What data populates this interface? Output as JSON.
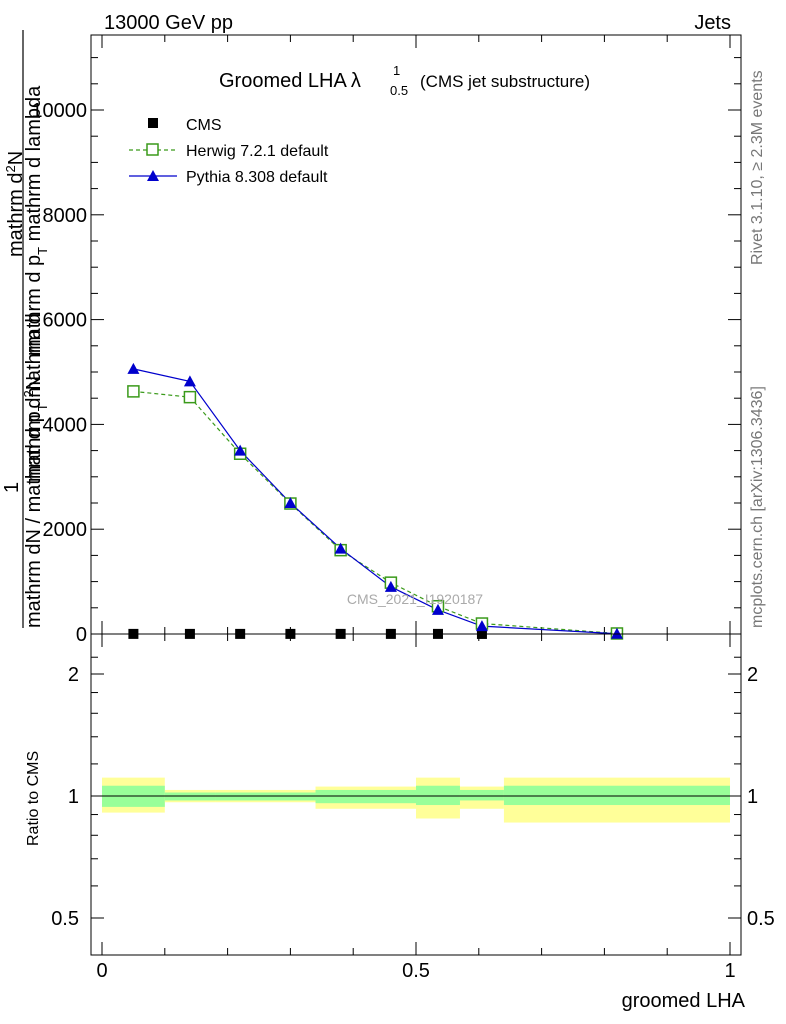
{
  "header": {
    "left": "13000 GeV pp",
    "right": "Jets"
  },
  "side_labels": {
    "rivet": "Rivet 3.1.10, ≥ 2.3M events",
    "mcplots": "mcplots.cern.ch [arXiv:1306.3436]"
  },
  "title": {
    "main": "Groomed LHA",
    "lambda": "λ",
    "sup": "1",
    "sub": "0.5",
    "note": "(CMS jet substructure)"
  },
  "watermark": "CMS_2021_I1920187",
  "ylabel_main": {
    "one": "1",
    "left_num": "mathrm d",
    "left_num_sup": "2",
    "left_num_after": "N",
    "left_den": "mathrm dN / mathrm d p",
    "left_den_sub": "T",
    "left_den_after": " mathrm d",
    "right_num": "mathrm d",
    "right_num_sup": "2",
    "right_num_after": "N",
    "right_den": "mathrm d p",
    "right_den_sub": "T",
    "right_den_after": " mathrm d lambda"
  },
  "ylabel_ratio": "Ratio to CMS",
  "xlabel": "groomed LHA",
  "colors": {
    "cms": "#000000",
    "herwig": "#3a9a1a",
    "pythia": "#0000cc",
    "band_inner": "#99ff99",
    "band_outer": "#ffff99"
  },
  "chart_data": [
    {
      "type": "line",
      "panel": "main",
      "xlim": [
        0,
        1
      ],
      "ylim": [
        0,
        11500
      ],
      "y_ticks": [
        {
          "value": 0,
          "label": "0"
        },
        {
          "value": 2000,
          "label": "2000"
        },
        {
          "value": 4000,
          "label": "4000"
        },
        {
          "value": 6000,
          "label": "6000"
        },
        {
          "value": 8000,
          "label": "8000"
        },
        {
          "value": 10000,
          "label": "10000"
        }
      ],
      "legend_position": "top-left",
      "series": [
        {
          "name": "CMS",
          "style": "black squares",
          "x": [
            0.05,
            0.14,
            0.22,
            0.3,
            0.38,
            0.46,
            0.535,
            0.605,
            0.82
          ],
          "y": [
            2,
            2,
            2,
            2,
            2,
            2,
            2,
            1,
            0
          ]
        },
        {
          "name": "Herwig 7.2.1 default",
          "style": "green dashed, open squares",
          "x": [
            0.05,
            0.14,
            0.22,
            0.3,
            0.38,
            0.46,
            0.535,
            0.605,
            0.82
          ],
          "y": [
            4630,
            4520,
            3440,
            2490,
            1600,
            980,
            530,
            200,
            10
          ]
        },
        {
          "name": "Pythia 8.308 default",
          "style": "blue solid, filled triangles",
          "x": [
            0.05,
            0.14,
            0.22,
            0.3,
            0.38,
            0.46,
            0.535,
            0.605,
            0.82
          ],
          "y": [
            5060,
            4820,
            3500,
            2500,
            1630,
            900,
            460,
            150,
            5
          ]
        }
      ]
    },
    {
      "type": "area",
      "panel": "ratio",
      "xlim": [
        0,
        1
      ],
      "ylim": [
        0.4,
        2.3
      ],
      "y_ticks": [
        {
          "value": 0.5,
          "label": "0.5"
        },
        {
          "value": 1,
          "label": "1"
        },
        {
          "value": 2,
          "label": "2"
        }
      ],
      "x_ticks": [
        {
          "value": 0,
          "label": "0"
        },
        {
          "value": 0.5,
          "label": "0.5"
        },
        {
          "value": 1,
          "label": "1"
        }
      ],
      "bins": [
        {
          "x0": 0.0,
          "x1": 0.1,
          "inner": [
            0.94,
            1.06
          ],
          "outer": [
            0.91,
            1.11
          ]
        },
        {
          "x0": 0.1,
          "x1": 0.18,
          "inner": [
            0.975,
            1.02
          ],
          "outer": [
            0.965,
            1.035
          ]
        },
        {
          "x0": 0.18,
          "x1": 0.34,
          "inner": [
            0.975,
            1.02
          ],
          "outer": [
            0.965,
            1.035
          ]
        },
        {
          "x0": 0.34,
          "x1": 0.5,
          "inner": [
            0.96,
            1.035
          ],
          "outer": [
            0.93,
            1.055
          ]
        },
        {
          "x0": 0.5,
          "x1": 0.57,
          "inner": [
            0.95,
            1.06
          ],
          "outer": [
            0.88,
            1.11
          ]
        },
        {
          "x0": 0.57,
          "x1": 0.64,
          "inner": [
            0.975,
            1.035
          ],
          "outer": [
            0.93,
            1.055
          ]
        },
        {
          "x0": 0.64,
          "x1": 1.0,
          "inner": [
            0.95,
            1.06
          ],
          "outer": [
            0.86,
            1.11
          ]
        }
      ]
    }
  ]
}
